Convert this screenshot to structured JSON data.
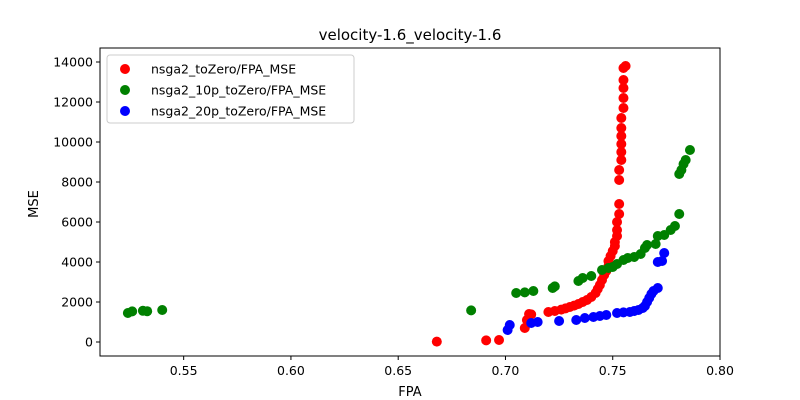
{
  "chart_data": {
    "type": "scatter",
    "title": "velocity-1.6_velocity-1.6",
    "xlabel": "FPA",
    "ylabel": "MSE",
    "xlim": [
      0.511,
      0.8
    ],
    "ylim": [
      -700,
      14700
    ],
    "x_ticks": [
      "0.55",
      "0.60",
      "0.65",
      "0.70",
      "0.75",
      "0.80"
    ],
    "x_tick_values": [
      0.55,
      0.6,
      0.65,
      0.7,
      0.75,
      0.8
    ],
    "y_ticks": [
      "0",
      "2000",
      "4000",
      "6000",
      "8000",
      "10000",
      "12000",
      "14000"
    ],
    "y_tick_values": [
      0,
      2000,
      4000,
      6000,
      8000,
      10000,
      12000,
      14000
    ],
    "grid": false,
    "legend_position": "top-left",
    "series": [
      {
        "name": "nsga2_toZero/FPA_MSE",
        "color": "#ff0000",
        "points": [
          [
            0.668,
            20
          ],
          [
            0.691,
            80
          ],
          [
            0.697,
            100
          ],
          [
            0.709,
            700
          ],
          [
            0.71,
            1100
          ],
          [
            0.711,
            1400
          ],
          [
            0.712,
            1380
          ],
          [
            0.72,
            1500
          ],
          [
            0.723,
            1550
          ],
          [
            0.726,
            1620
          ],
          [
            0.728,
            1680
          ],
          [
            0.73,
            1750
          ],
          [
            0.732,
            1820
          ],
          [
            0.734,
            1900
          ],
          [
            0.736,
            2000
          ],
          [
            0.738,
            2100
          ],
          [
            0.74,
            2250
          ],
          [
            0.742,
            2450
          ],
          [
            0.743,
            2650
          ],
          [
            0.744,
            2850
          ],
          [
            0.745,
            3100
          ],
          [
            0.746,
            3350
          ],
          [
            0.747,
            3550
          ],
          [
            0.748,
            3800
          ],
          [
            0.748,
            4050
          ],
          [
            0.749,
            4300
          ],
          [
            0.75,
            4550
          ],
          [
            0.751,
            4800
          ],
          [
            0.751,
            5000
          ],
          [
            0.752,
            5300
          ],
          [
            0.752,
            5600
          ],
          [
            0.752,
            6000
          ],
          [
            0.753,
            6400
          ],
          [
            0.753,
            6900
          ],
          [
            0.753,
            8100
          ],
          [
            0.753,
            8600
          ],
          [
            0.754,
            9100
          ],
          [
            0.754,
            9500
          ],
          [
            0.754,
            9900
          ],
          [
            0.754,
            10300
          ],
          [
            0.754,
            10700
          ],
          [
            0.754,
            11200
          ],
          [
            0.755,
            11700
          ],
          [
            0.755,
            12200
          ],
          [
            0.755,
            12700
          ],
          [
            0.755,
            13100
          ],
          [
            0.755,
            13700
          ],
          [
            0.756,
            13800
          ]
        ]
      },
      {
        "name": "nsga2_10p_toZero/FPA_MSE",
        "color": "#008000",
        "points": [
          [
            0.524,
            1450
          ],
          [
            0.526,
            1530
          ],
          [
            0.531,
            1560
          ],
          [
            0.533,
            1540
          ],
          [
            0.54,
            1600
          ],
          [
            0.684,
            1580
          ],
          [
            0.705,
            2450
          ],
          [
            0.709,
            2480
          ],
          [
            0.713,
            2550
          ],
          [
            0.722,
            2700
          ],
          [
            0.723,
            2780
          ],
          [
            0.734,
            3050
          ],
          [
            0.736,
            3200
          ],
          [
            0.74,
            3300
          ],
          [
            0.745,
            3600
          ],
          [
            0.748,
            3700
          ],
          [
            0.75,
            3750
          ],
          [
            0.752,
            3900
          ],
          [
            0.755,
            4100
          ],
          [
            0.757,
            4200
          ],
          [
            0.76,
            4250
          ],
          [
            0.763,
            4400
          ],
          [
            0.765,
            4700
          ],
          [
            0.766,
            4850
          ],
          [
            0.77,
            4900
          ],
          [
            0.771,
            5300
          ],
          [
            0.774,
            5350
          ],
          [
            0.777,
            5600
          ],
          [
            0.779,
            5800
          ],
          [
            0.781,
            6400
          ],
          [
            0.781,
            8400
          ],
          [
            0.782,
            8600
          ],
          [
            0.783,
            8900
          ],
          [
            0.784,
            9100
          ],
          [
            0.786,
            9600
          ]
        ]
      },
      {
        "name": "nsga2_20p_toZero/FPA_MSE",
        "color": "#0000ff",
        "points": [
          [
            0.701,
            600
          ],
          [
            0.702,
            850
          ],
          [
            0.712,
            950
          ],
          [
            0.715,
            1000
          ],
          [
            0.725,
            1050
          ],
          [
            0.733,
            1100
          ],
          [
            0.737,
            1200
          ],
          [
            0.741,
            1250
          ],
          [
            0.744,
            1300
          ],
          [
            0.747,
            1350
          ],
          [
            0.752,
            1450
          ],
          [
            0.755,
            1480
          ],
          [
            0.758,
            1500
          ],
          [
            0.76,
            1550
          ],
          [
            0.762,
            1600
          ],
          [
            0.764,
            1700
          ],
          [
            0.765,
            1800
          ],
          [
            0.766,
            2000
          ],
          [
            0.767,
            2200
          ],
          [
            0.768,
            2400
          ],
          [
            0.769,
            2550
          ],
          [
            0.771,
            2700
          ],
          [
            0.771,
            4000
          ],
          [
            0.773,
            4050
          ],
          [
            0.774,
            4450
          ]
        ]
      }
    ]
  }
}
